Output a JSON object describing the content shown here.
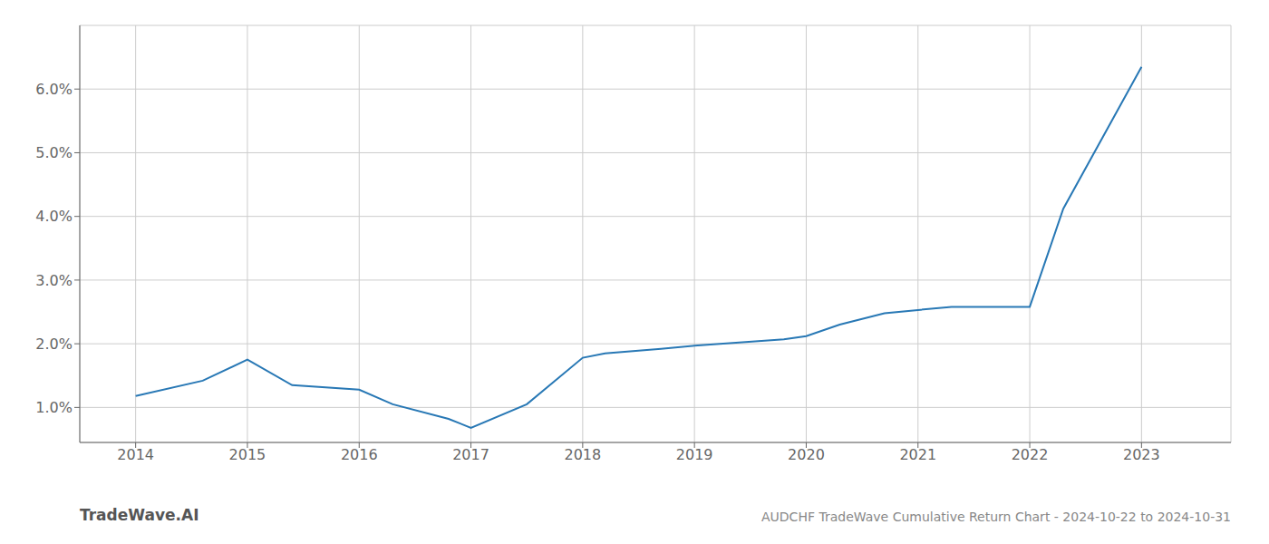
{
  "chart_data": {
    "type": "line",
    "title": "AUDCHF TradeWave Cumulative Return Chart - 2024-10-22 to 2024-10-31",
    "annotations": [
      "TradeWave.AI"
    ],
    "x": [
      2014.0,
      2014.6,
      2015.0,
      2015.4,
      2016.0,
      2016.3,
      2016.8,
      2017.0,
      2017.5,
      2018.0,
      2018.2,
      2018.7,
      2019.0,
      2019.4,
      2019.8,
      2020.0,
      2020.3,
      2020.7,
      2021.0,
      2021.3,
      2022.0,
      2022.3,
      2023.0
    ],
    "values": [
      1.18,
      1.42,
      1.75,
      1.35,
      1.28,
      1.05,
      0.82,
      0.68,
      1.05,
      1.78,
      1.85,
      1.92,
      1.97,
      2.02,
      2.07,
      2.12,
      2.3,
      2.48,
      2.53,
      2.58,
      2.58,
      4.12,
      6.35
    ],
    "color": "#2878b5",
    "xlim": [
      2013.5,
      2023.8
    ],
    "ylim": [
      0.45,
      7.0
    ],
    "xticks": [
      2014,
      2015,
      2016,
      2017,
      2018,
      2019,
      2020,
      2021,
      2022,
      2023
    ],
    "yticks": [
      {
        "value": 1.0,
        "label": "1.0%"
      },
      {
        "value": 2.0,
        "label": "2.0%"
      },
      {
        "value": 3.0,
        "label": "3.0%"
      },
      {
        "value": 4.0,
        "label": "4.0%"
      },
      {
        "value": 5.0,
        "label": "5.0%"
      },
      {
        "value": 6.0,
        "label": "6.0%"
      }
    ],
    "grid": true
  }
}
